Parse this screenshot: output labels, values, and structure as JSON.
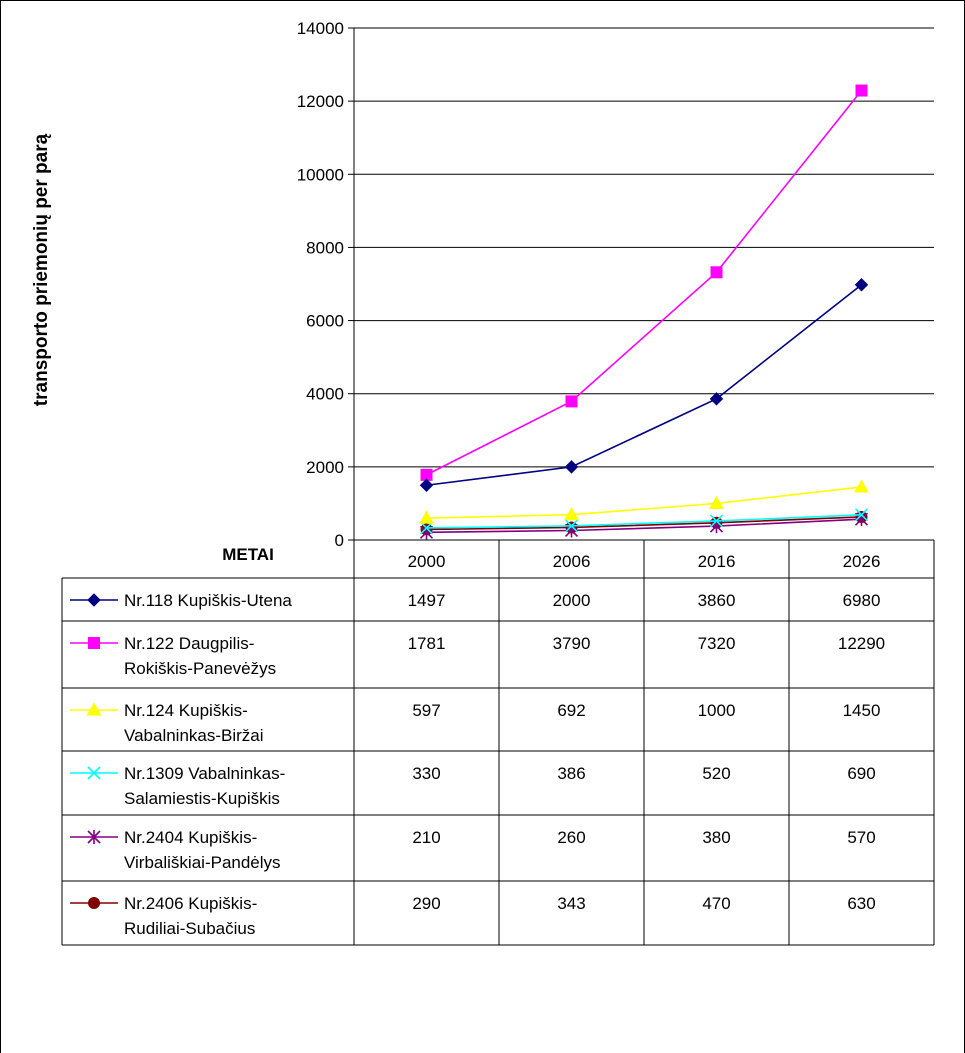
{
  "chart_data": {
    "type": "line",
    "title": "",
    "xlabel": "METAI",
    "ylabel": "transporto priemonių per parą",
    "ylim": [
      0,
      14000
    ],
    "yticks": [
      "0",
      "2000",
      "4000",
      "6000",
      "8000",
      "10000",
      "12000",
      "14000"
    ],
    "categories": [
      "2000",
      "2006",
      "2016",
      "2026"
    ],
    "grid": true,
    "legend": "table-below",
    "series": [
      {
        "name_lines": [
          "Nr.118 Kupiškis-Utena"
        ],
        "values": [
          1497,
          2000,
          3860,
          6980
        ],
        "labels": [
          "1497",
          "2000",
          "3860",
          "6980"
        ],
        "color": "#000080",
        "marker": "diamond"
      },
      {
        "name_lines": [
          "Nr.122 Daugpilis-",
          "Rokiškis-Panevėžys"
        ],
        "values": [
          1781,
          3790,
          7320,
          12290
        ],
        "labels": [
          "1781",
          "3790",
          "7320",
          "12290"
        ],
        "color": "#FF00FF",
        "marker": "square"
      },
      {
        "name_lines": [
          "Nr.124 Kupiškis-",
          "Vabalninkas-Biržai"
        ],
        "values": [
          597,
          692,
          1000,
          1450
        ],
        "labels": [
          "597",
          "692",
          "1000",
          "1450"
        ],
        "color": "#FFFF00",
        "marker": "triangle"
      },
      {
        "name_lines": [
          "Nr.1309 Vabalninkas-",
          "Salamiestis-Kupiškis"
        ],
        "values": [
          330,
          386,
          520,
          690
        ],
        "labels": [
          "330",
          "386",
          "520",
          "690"
        ],
        "color": "#00FFFF",
        "marker": "x"
      },
      {
        "name_lines": [
          "Nr.2404 Kupiškis-",
          "Virbališkiai-Pandėlys"
        ],
        "values": [
          210,
          260,
          380,
          570
        ],
        "labels": [
          "210",
          "260",
          "380",
          "570"
        ],
        "color": "#800080",
        "marker": "star"
      },
      {
        "name_lines": [
          "Nr.2406 Kupiškis-",
          "Rudiliai-Subačius"
        ],
        "values": [
          290,
          343,
          470,
          630
        ],
        "labels": [
          "290",
          "343",
          "470",
          "630"
        ],
        "color": "#800000",
        "marker": "circle"
      }
    ]
  }
}
